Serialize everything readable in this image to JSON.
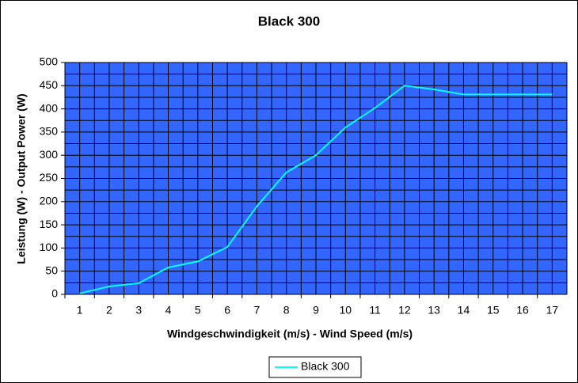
{
  "chart_data": {
    "type": "line",
    "title": "Black 300",
    "x_label": "Windgeschwindigkeit (m/s) - Wind Speed (m/s)",
    "y_label": "Leistung (W) - Output Power (W)",
    "categories": [
      "1",
      "2",
      "3",
      "4",
      "5",
      "6",
      "7",
      "8",
      "9",
      "10",
      "11",
      "12",
      "13",
      "14",
      "15",
      "16",
      "17"
    ],
    "series": [
      {
        "name": "Black 300",
        "color": "#00ffff",
        "values": [
          2,
          17,
          24,
          58,
          71,
          102,
          190,
          263,
          300,
          360,
          402,
          450,
          442,
          431,
          431,
          431,
          431
        ]
      }
    ],
    "ylim": [
      0,
      500
    ],
    "yticks": [
      0,
      50,
      100,
      150,
      200,
      250,
      300,
      350,
      400,
      450,
      500
    ],
    "grid": true,
    "plot_background": "#3366ff",
    "legend": "bottom"
  }
}
